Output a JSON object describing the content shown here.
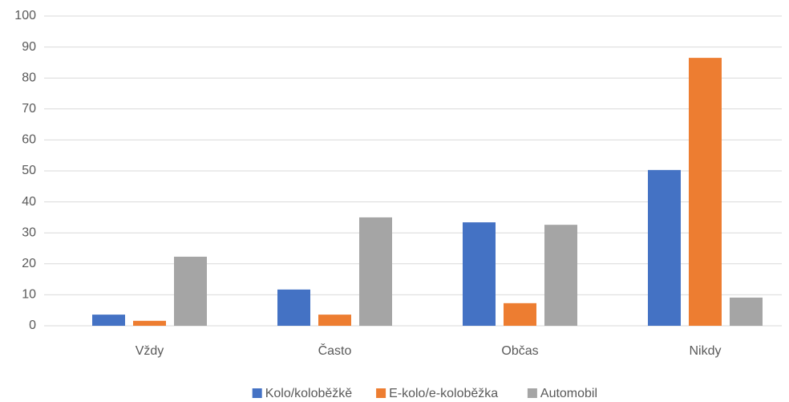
{
  "chart_data": {
    "type": "bar",
    "categories": [
      "Vždy",
      "Často",
      "Občas",
      "Nikdy"
    ],
    "series": [
      {
        "name": "Kolo/koloběžkě",
        "color": "#4472c4",
        "values": [
          3.6,
          11.7,
          33.4,
          50.3
        ]
      },
      {
        "name": "E-kolo/e-koloběžka",
        "color": "#ed7d31",
        "values": [
          1.6,
          3.6,
          7.3,
          86.5
        ]
      },
      {
        "name": "Automobil",
        "color": "#a5a5a5",
        "values": [
          22.3,
          35,
          32.6,
          9.1
        ]
      }
    ],
    "ylim": [
      0,
      100
    ],
    "yticks": [
      0,
      10,
      20,
      30,
      40,
      50,
      60,
      70,
      80,
      90,
      100
    ],
    "grid": true,
    "legend": "bottom"
  }
}
